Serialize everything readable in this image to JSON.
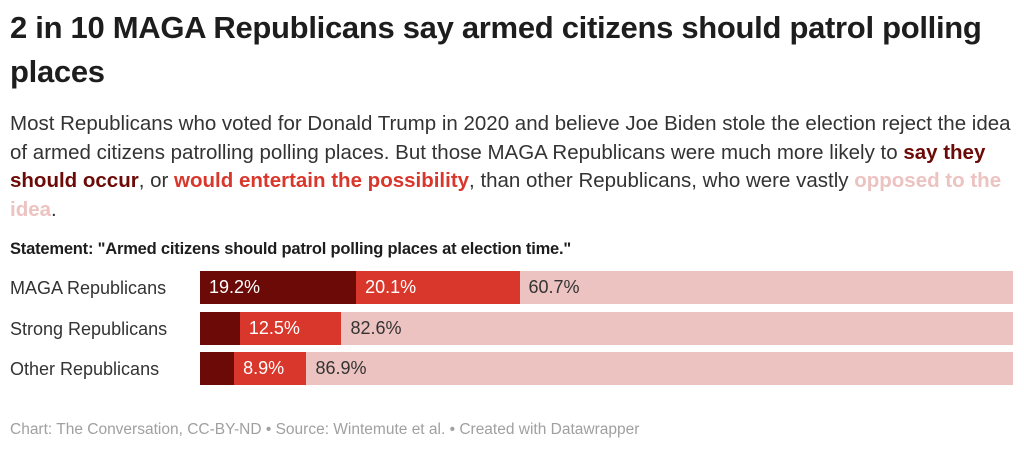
{
  "title": "2 in 10 MAGA Republicans say armed citizens should patrol polling places",
  "description": {
    "p1": "Most Republicans who voted for Donald Trump in 2020 and believe Joe Biden stole the election reject the idea of armed citizens patrolling polling places. But those MAGA Republicans were much more likely to ",
    "k1": "say they should occur",
    "p2": ", or ",
    "k2": "would entertain the possibility",
    "p3": ", than other Republicans, who were vastly ",
    "k3": "opposed to the idea",
    "p4": "."
  },
  "chart_data": {
    "type": "stacked-bar-horizontal",
    "title": "Statement: \"Armed citizens should patrol polling places at election time.\"",
    "categories": [
      "MAGA Republicans",
      "Strong Republicans",
      "Other Republicans"
    ],
    "series": [
      {
        "key": "support",
        "values": [
          19.2,
          4.9,
          4.2
        ],
        "labels": [
          "19.2%",
          "",
          ""
        ],
        "color": "#6b0a06"
      },
      {
        "key": "maybe",
        "values": [
          20.1,
          12.5,
          8.9
        ],
        "labels": [
          "20.1%",
          "12.5%",
          "8.9%"
        ],
        "color": "#d9372c"
      },
      {
        "key": "oppose",
        "values": [
          60.7,
          82.6,
          86.9
        ],
        "labels": [
          "60.7%",
          "82.6%",
          "86.9%"
        ],
        "color": "#ecc3c1"
      }
    ],
    "xlim": [
      0,
      100
    ]
  },
  "footer": "Chart: The Conversation, CC-BY-ND • Source: Wintemute et al. • Created with Datawrapper"
}
